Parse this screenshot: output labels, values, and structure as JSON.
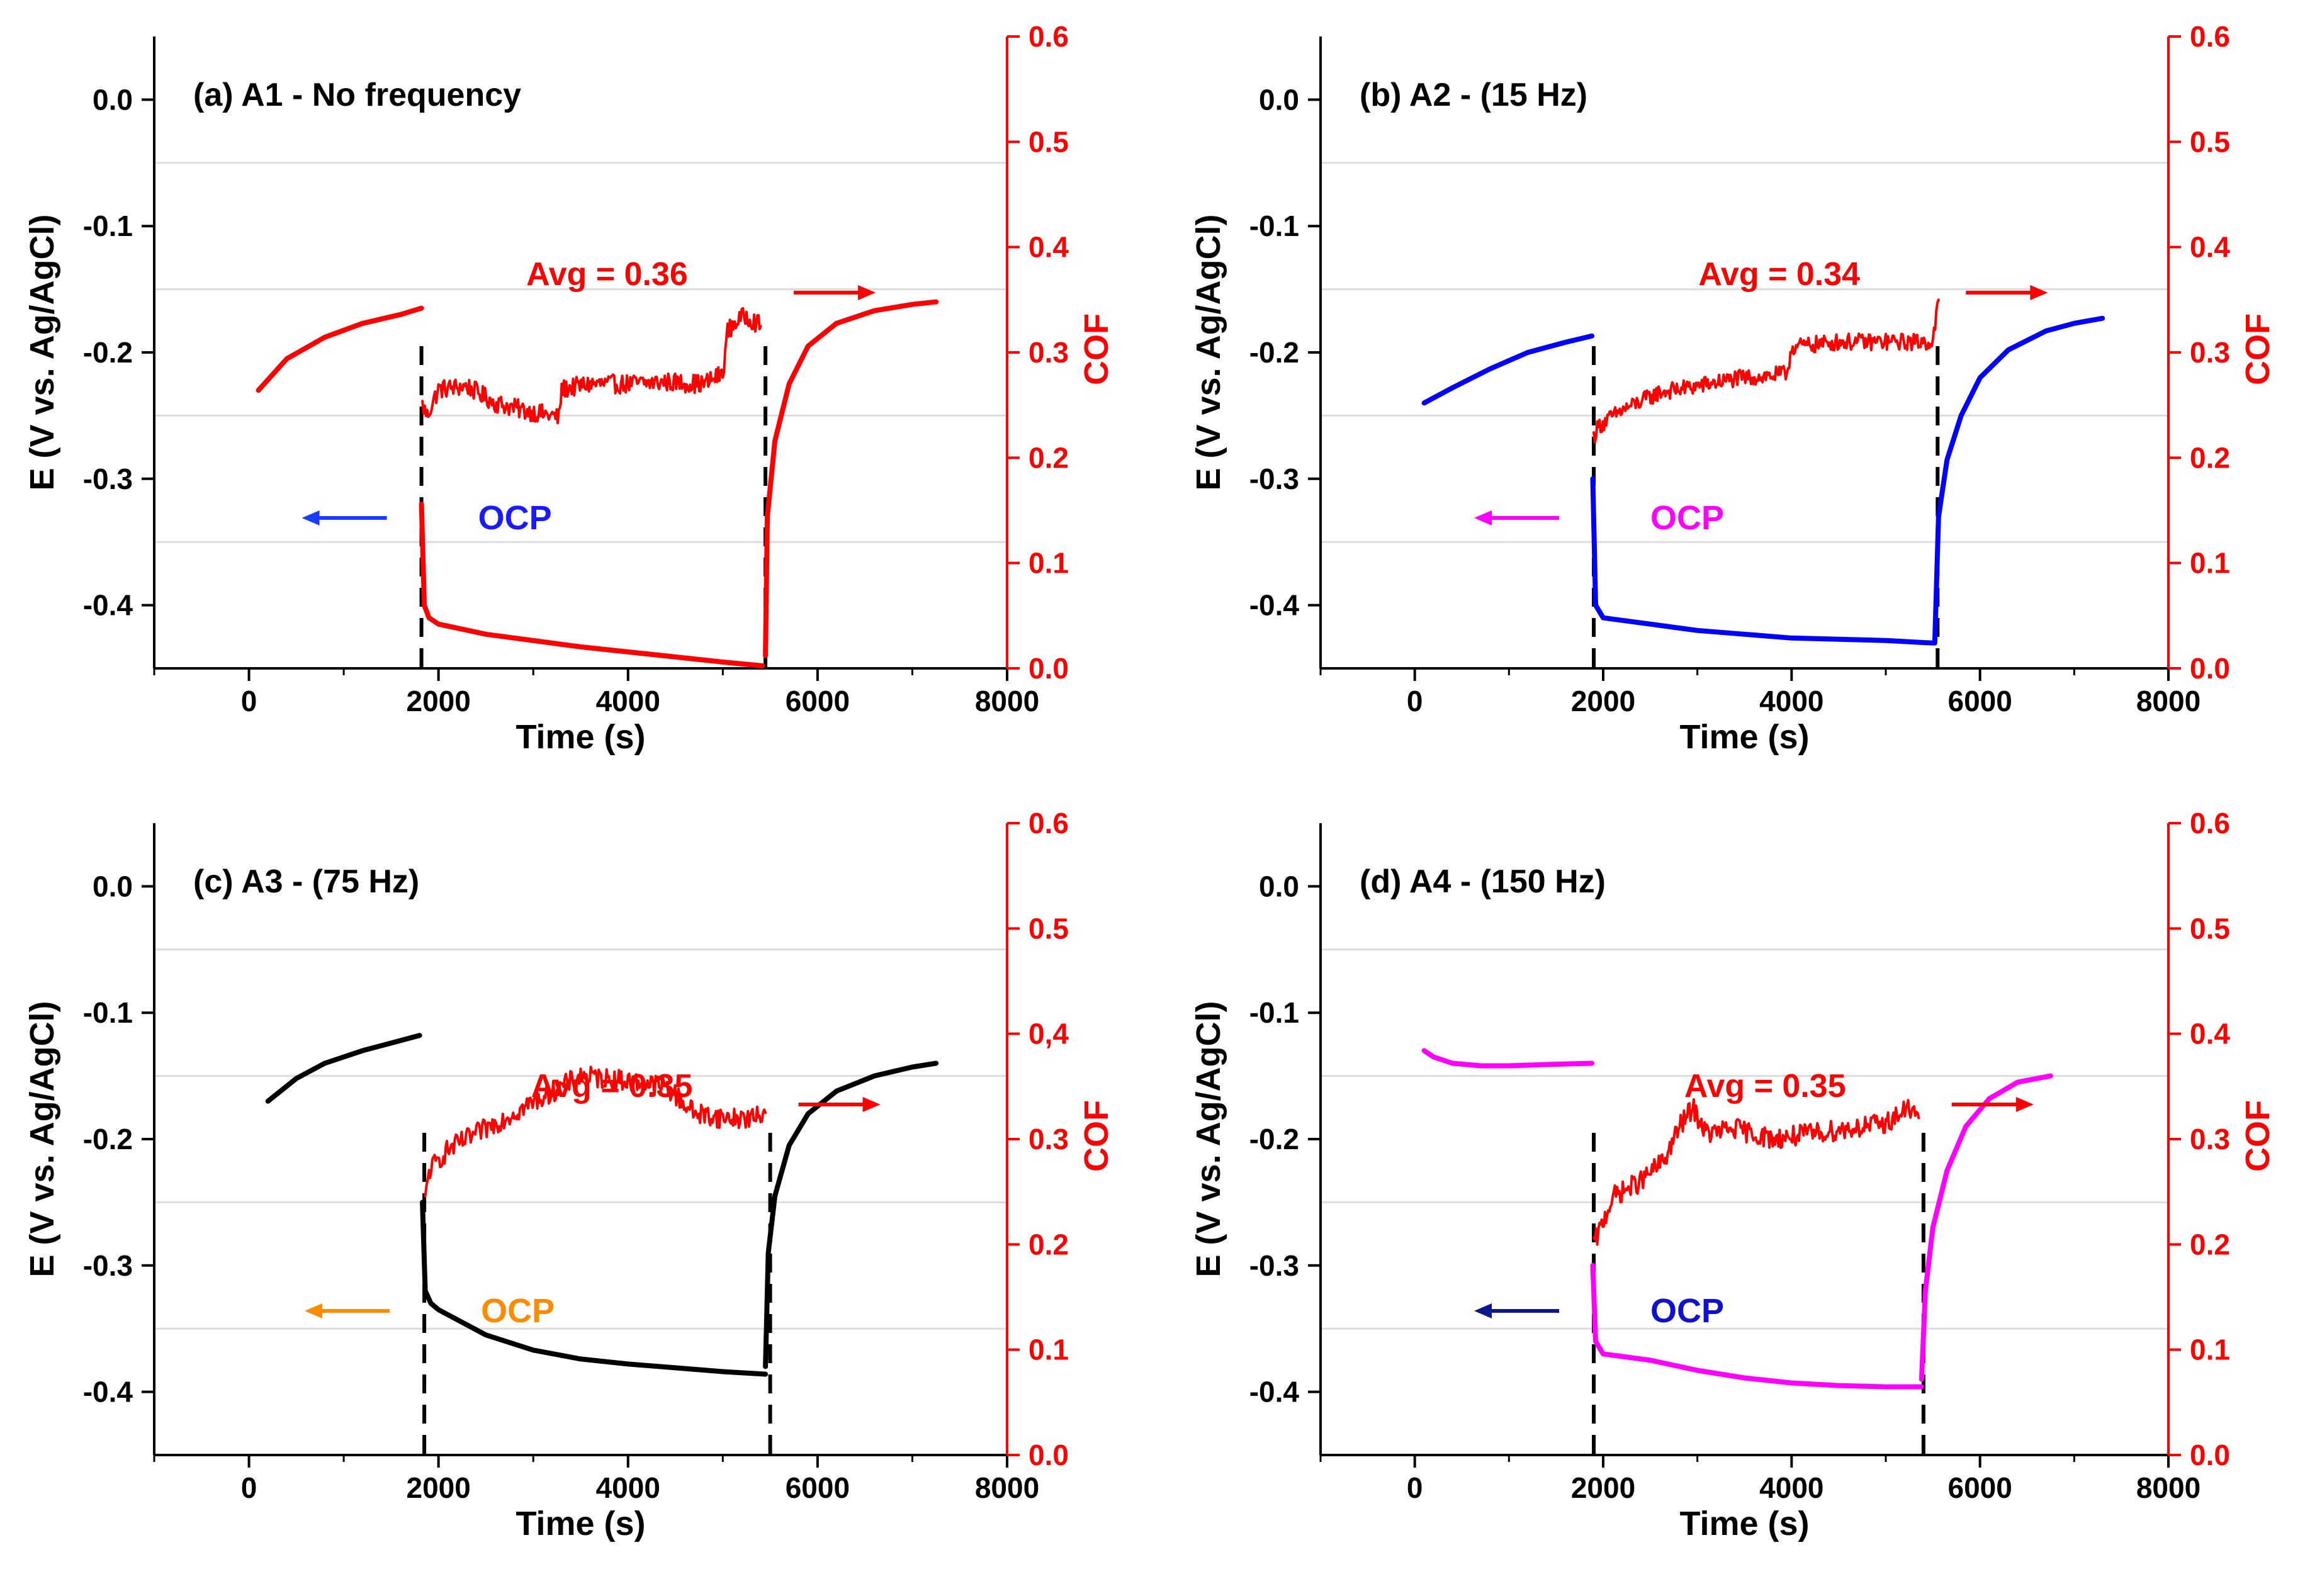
{
  "chart_data": [
    {
      "type": "line",
      "panel_label": "(a) A1 - No frequency",
      "xlabel": "Time (s)",
      "ylabel_left": "E (V vs. Ag/AgCl)",
      "ylabel_right": "COF",
      "xlim": [
        -1000,
        8000
      ],
      "ylim_left": [
        -0.45,
        0.05
      ],
      "ylim_right": [
        0.0,
        0.6
      ],
      "x_ticks": [
        0,
        2000,
        4000,
        6000,
        8000
      ],
      "y_ticks_left": [
        0.0,
        -0.1,
        -0.2,
        -0.3,
        -0.4
      ],
      "y_ticks_right": [
        0.0,
        0.1,
        0.2,
        0.3,
        0.4,
        0.5,
        0.6
      ],
      "avg_label": "Avg = 0.36",
      "ocp_label": "OCP",
      "ocp_color": "#1a1aff",
      "left_arrow_color": "#1a3cff",
      "cof_color": "#ff0000",
      "dashed_lines_x": [
        1820,
        5450
      ],
      "series": [
        {
          "name": "E pre-slide",
          "axis": "left",
          "color": "#ff0000",
          "x": [
            100,
            400,
            800,
            1200,
            1600,
            1820
          ],
          "y": [
            -0.23,
            -0.205,
            -0.188,
            -0.177,
            -0.17,
            -0.165
          ]
        },
        {
          "name": "E during slide",
          "axis": "left",
          "color": "#ff0000",
          "x": [
            1820,
            1850,
            1900,
            2000,
            2500,
            3000,
            3500,
            4000,
            4500,
            5000,
            5420
          ],
          "y": [
            -0.32,
            -0.4,
            -0.41,
            -0.415,
            -0.423,
            -0.428,
            -0.433,
            -0.437,
            -0.441,
            -0.445,
            -0.448
          ]
        },
        {
          "name": "E post-slide",
          "axis": "left",
          "color": "#ff0000",
          "x": [
            5450,
            5470,
            5550,
            5700,
            5900,
            6200,
            6600,
            7000,
            7250
          ],
          "y": [
            -0.44,
            -0.33,
            -0.27,
            -0.225,
            -0.195,
            -0.177,
            -0.167,
            -0.162,
            -0.16
          ]
        },
        {
          "name": "COF",
          "axis": "right",
          "color": "#ff0000",
          "noise": 0.009,
          "x": [
            1830,
            1880,
            2000,
            2300,
            2600,
            2900,
            3200,
            3270,
            3300,
            3600,
            4000,
            4400,
            4800,
            5000,
            5050,
            5150,
            5250,
            5400
          ],
          "y": [
            0.25,
            0.24,
            0.265,
            0.268,
            0.252,
            0.245,
            0.24,
            0.238,
            0.265,
            0.27,
            0.27,
            0.272,
            0.27,
            0.28,
            0.32,
            0.33,
            0.335,
            0.325
          ]
        }
      ]
    },
    {
      "type": "line",
      "panel_label": "(b) A2 - (15 Hz)",
      "xlabel": "Time (s)",
      "ylabel_left": "E (V vs. Ag/AgCl)",
      "ylabel_right": "COF",
      "xlim": [
        -1000,
        8000
      ],
      "ylim_left": [
        -0.45,
        0.05
      ],
      "ylim_right": [
        0.0,
        0.6
      ],
      "x_ticks": [
        0,
        2000,
        4000,
        6000,
        8000
      ],
      "y_ticks_left": [
        0.0,
        -0.1,
        -0.2,
        -0.3,
        -0.4
      ],
      "y_ticks_right": [
        0.0,
        0.1,
        0.2,
        0.3,
        0.4,
        0.5,
        0.6
      ],
      "avg_label": "Avg = 0.34",
      "ocp_label": "OCP",
      "ocp_color": "#ff00ff",
      "left_arrow_color": "#ff00ff",
      "cof_color": "#ff0000",
      "dashed_lines_x": [
        1900,
        5550
      ],
      "series": [
        {
          "name": "E pre-slide",
          "axis": "left",
          "color": "#0000ff",
          "x": [
            100,
            400,
            800,
            1200,
            1600,
            1880
          ],
          "y": [
            -0.24,
            -0.228,
            -0.213,
            -0.2,
            -0.192,
            -0.187
          ]
        },
        {
          "name": "E during slide",
          "axis": "left",
          "color": "#0000ff",
          "x": [
            1890,
            1920,
            2000,
            2500,
            3000,
            3500,
            4000,
            4500,
            5000,
            5500
          ],
          "y": [
            -0.3,
            -0.4,
            -0.41,
            -0.415,
            -0.42,
            -0.423,
            -0.426,
            -0.427,
            -0.428,
            -0.43
          ]
        },
        {
          "name": "E post-slide",
          "axis": "left",
          "color": "#0000ff",
          "x": [
            5520,
            5560,
            5650,
            5800,
            6000,
            6300,
            6700,
            7000,
            7300
          ],
          "y": [
            -0.43,
            -0.33,
            -0.285,
            -0.25,
            -0.22,
            -0.198,
            -0.183,
            -0.177,
            -0.173
          ]
        },
        {
          "name": "COF",
          "axis": "right",
          "color": "#ff0000",
          "noise": 0.008,
          "x": [
            1900,
            1950,
            2200,
            2600,
            3000,
            3400,
            3800,
            3950,
            4000,
            4500,
            5000,
            5500,
            5560
          ],
          "y": [
            0.22,
            0.23,
            0.245,
            0.262,
            0.268,
            0.275,
            0.278,
            0.28,
            0.305,
            0.31,
            0.31,
            0.31,
            0.35
          ]
        }
      ]
    },
    {
      "type": "line",
      "panel_label": "(c) A3 - (75 Hz)",
      "xlabel": "Time (s)",
      "ylabel_left": "E (V vs. Ag/AgCl)",
      "ylabel_right": "COF",
      "xlim": [
        -1000,
        8000
      ],
      "ylim_left": [
        -0.45,
        0.05
      ],
      "ylim_right": [
        0.0,
        0.6
      ],
      "x_ticks": [
        0,
        2000,
        4000,
        6000,
        8000
      ],
      "y_ticks_left": [
        0.0,
        -0.1,
        -0.2,
        -0.3,
        -0.4
      ],
      "y_ticks_right": [
        0.0,
        0.1,
        0.2,
        0.3,
        "0,4",
        0.5,
        0.6
      ],
      "avg_label": "Avg = 0.35",
      "ocp_label": "OCP",
      "ocp_color": "#ff8c00",
      "left_arrow_color": "#ff8c00",
      "cof_color": "#ff0000",
      "dashed_lines_x": [
        1850,
        5500
      ],
      "series": [
        {
          "name": "E pre-slide",
          "axis": "left",
          "color": "#000000",
          "x": [
            200,
            500,
            800,
            1200,
            1600,
            1800
          ],
          "y": [
            -0.17,
            -0.152,
            -0.14,
            -0.13,
            -0.122,
            -0.118
          ]
        },
        {
          "name": "E during slide",
          "axis": "left",
          "color": "#000000",
          "x": [
            1830,
            1860,
            1920,
            2000,
            2500,
            3000,
            3500,
            4000,
            4500,
            5000,
            5450
          ],
          "y": [
            -0.25,
            -0.32,
            -0.33,
            -0.335,
            -0.355,
            -0.367,
            -0.374,
            -0.378,
            -0.381,
            -0.384,
            -0.386
          ]
        },
        {
          "name": "E post-slide",
          "axis": "left",
          "color": "#000000",
          "x": [
            5450,
            5480,
            5550,
            5700,
            5900,
            6200,
            6600,
            7000,
            7250
          ],
          "y": [
            -0.38,
            -0.29,
            -0.245,
            -0.205,
            -0.18,
            -0.162,
            -0.15,
            -0.143,
            -0.14
          ]
        },
        {
          "name": "COF",
          "axis": "right",
          "color": "#ff0000",
          "noise": 0.01,
          "x": [
            1860,
            1900,
            2100,
            2400,
            2800,
            3200,
            3500,
            4000,
            4400,
            4700,
            5000,
            5350,
            5450
          ],
          "y": [
            0.24,
            0.27,
            0.29,
            0.305,
            0.325,
            0.345,
            0.36,
            0.355,
            0.35,
            0.325,
            0.32,
            0.32,
            0.325
          ]
        }
      ]
    },
    {
      "type": "line",
      "panel_label": "(d) A4 - (150 Hz)",
      "xlabel": "Time (s)",
      "ylabel_left": "E (V vs. Ag/AgCl)",
      "ylabel_right": "COF",
      "xlim": [
        -1000,
        8000
      ],
      "ylim_left": [
        -0.45,
        0.05
      ],
      "ylim_right": [
        0.0,
        0.6
      ],
      "x_ticks": [
        0,
        2000,
        4000,
        6000,
        8000
      ],
      "y_ticks_left": [
        0.0,
        -0.1,
        -0.2,
        -0.3,
        -0.4
      ],
      "y_ticks_right": [
        0.0,
        0.1,
        0.2,
        0.3,
        0.4,
        0.5,
        0.6
      ],
      "avg_label": "Avg = 0.35",
      "ocp_label": "OCP",
      "ocp_color": "#1010d0",
      "left_arrow_color": "#0a1a8c",
      "cof_color": "#ff0000",
      "dashed_lines_x": [
        1900,
        5400
      ],
      "series": [
        {
          "name": "E pre-slide",
          "axis": "left",
          "color": "#ff00ff",
          "x": [
            100,
            200,
            400,
            700,
            1000,
            1400,
            1880
          ],
          "y": [
            -0.13,
            -0.135,
            -0.14,
            -0.142,
            -0.142,
            -0.141,
            -0.14
          ]
        },
        {
          "name": "E during slide",
          "axis": "left",
          "color": "#ff00ff",
          "x": [
            1890,
            1920,
            2000,
            2500,
            3000,
            3500,
            4000,
            4500,
            5000,
            5380
          ],
          "y": [
            -0.3,
            -0.36,
            -0.37,
            -0.375,
            -0.383,
            -0.389,
            -0.393,
            -0.395,
            -0.396,
            -0.396
          ]
        },
        {
          "name": "E post-slide",
          "axis": "left",
          "color": "#ff00ff",
          "x": [
            5380,
            5420,
            5500,
            5650,
            5850,
            6100,
            6400,
            6750
          ],
          "y": [
            -0.39,
            -0.32,
            -0.27,
            -0.225,
            -0.19,
            -0.168,
            -0.155,
            -0.15
          ]
        },
        {
          "name": "COF",
          "axis": "right",
          "color": "#ff0000",
          "noise": 0.01,
          "x": [
            1900,
            1950,
            2100,
            2400,
            2650,
            2800,
            2950,
            3100,
            3400,
            3800,
            4200,
            4600,
            5000,
            5250,
            5350
          ],
          "y": [
            0.2,
            0.21,
            0.245,
            0.26,
            0.28,
            0.31,
            0.33,
            0.305,
            0.31,
            0.3,
            0.305,
            0.31,
            0.315,
            0.33,
            0.32
          ]
        }
      ]
    }
  ]
}
